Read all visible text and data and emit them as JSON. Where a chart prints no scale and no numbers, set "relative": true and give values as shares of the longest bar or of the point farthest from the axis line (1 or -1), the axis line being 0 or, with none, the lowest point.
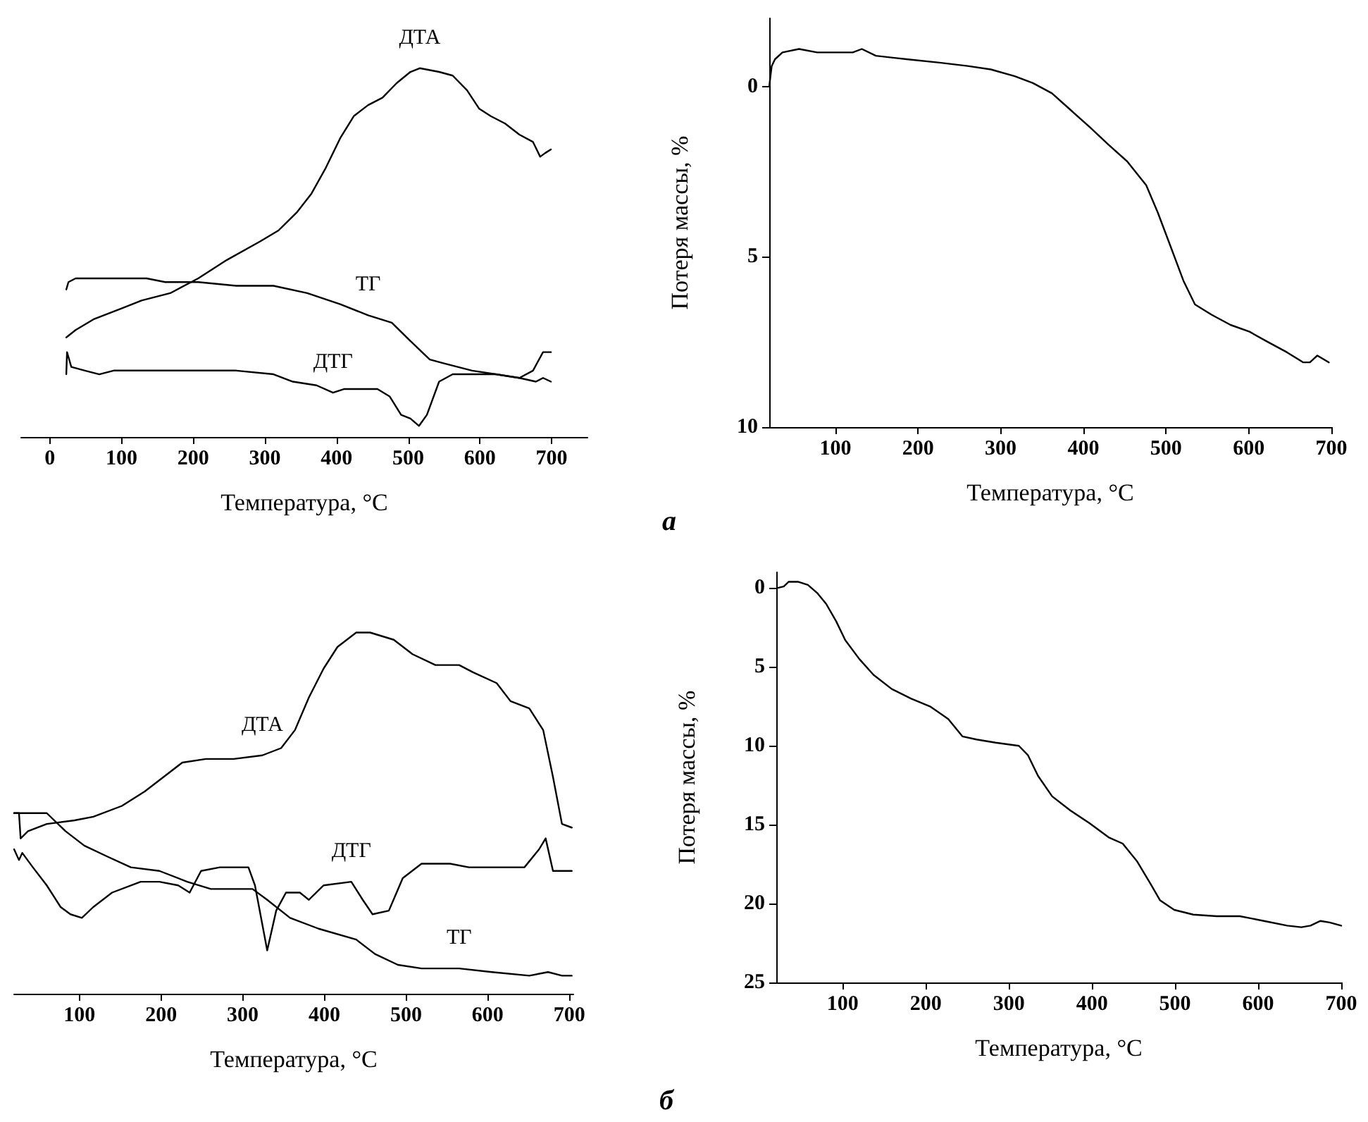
{
  "chart_data": [
    {
      "type": "line",
      "xlabel": "Температура, °C",
      "relative": true,
      "marker": "none",
      "grid": false,
      "legend": false,
      "xlim": [
        -40,
        750
      ],
      "xticks": [
        0,
        100,
        200,
        300,
        400,
        500,
        600,
        700
      ],
      "series": [
        {
          "name": "ДТА",
          "color": "#000000",
          "x": [
            23,
            36,
            62,
            102,
            128,
            168,
            207,
            247,
            293,
            319,
            345,
            365,
            385,
            405,
            424,
            444,
            464,
            484,
            503,
            516,
            543,
            562,
            582,
            599,
            615,
            635,
            655,
            674,
            684,
            691,
            699
          ],
          "values": [
            0.27,
            0.29,
            0.32,
            0.35,
            0.37,
            0.39,
            0.43,
            0.48,
            0.53,
            0.56,
            0.61,
            0.66,
            0.73,
            0.81,
            0.87,
            0.9,
            0.92,
            0.96,
            0.99,
            1.0,
            0.99,
            0.98,
            0.94,
            0.89,
            0.87,
            0.85,
            0.82,
            0.8,
            0.76,
            0.77,
            0.78
          ]
        },
        {
          "name": "ТГ",
          "color": "#000000",
          "x": [
            23,
            26,
            36,
            62,
            102,
            135,
            161,
            207,
            260,
            312,
            359,
            405,
            444,
            477,
            503,
            530,
            549,
            589,
            622,
            655,
            674,
            688,
            699
          ],
          "values": [
            0.4,
            0.42,
            0.43,
            0.43,
            0.43,
            0.43,
            0.42,
            0.42,
            0.41,
            0.41,
            0.39,
            0.36,
            0.33,
            0.31,
            0.26,
            0.21,
            0.2,
            0.18,
            0.17,
            0.16,
            0.18,
            0.23,
            0.23
          ]
        },
        {
          "name": "ДТГ",
          "color": "#000000",
          "x": [
            23,
            24,
            30,
            49,
            69,
            89,
            141,
            194,
            260,
            312,
            339,
            372,
            395,
            411,
            457,
            474,
            490,
            503,
            515,
            526,
            543,
            562,
            589,
            622,
            655,
            678,
            688,
            699
          ],
          "values": [
            0.17,
            0.23,
            0.19,
            0.18,
            0.17,
            0.18,
            0.18,
            0.18,
            0.18,
            0.17,
            0.15,
            0.14,
            0.12,
            0.13,
            0.13,
            0.11,
            0.06,
            0.05,
            0.03,
            0.06,
            0.15,
            0.17,
            0.17,
            0.17,
            0.16,
            0.15,
            0.16,
            0.15
          ]
        }
      ]
    },
    {
      "type": "line",
      "xlabel": "Температура, °C",
      "ylabel": "Потеря массы, %",
      "annotations": [
        "а"
      ],
      "marker": "none",
      "grid": false,
      "legend": false,
      "xlim": [
        20,
        700
      ],
      "xticks": [
        100,
        200,
        300,
        400,
        500,
        600,
        700
      ],
      "ylim": [
        10,
        -2
      ],
      "yticks": [
        0,
        5,
        10
      ],
      "series": [
        {
          "color": "#000000",
          "x": [
            20,
            23,
            27,
            36,
            56,
            78,
            101,
            121,
            132,
            149,
            186,
            226,
            260,
            288,
            317,
            339,
            362,
            385,
            408,
            430,
            453,
            476,
            490,
            504,
            521,
            535,
            555,
            578,
            601,
            623,
            646,
            666,
            674,
            683,
            697
          ],
          "values": [
            0,
            -0.6,
            -0.8,
            -1.0,
            -1.1,
            -1.0,
            -1.0,
            -1.0,
            -1.1,
            -0.9,
            -0.8,
            -0.7,
            -0.6,
            -0.5,
            -0.3,
            -0.1,
            0.2,
            0.7,
            1.2,
            1.7,
            2.2,
            2.9,
            3.7,
            4.6,
            5.7,
            6.4,
            6.7,
            7.0,
            7.2,
            7.5,
            7.8,
            8.1,
            8.1,
            7.9,
            8.1
          ]
        }
      ]
    },
    {
      "type": "line",
      "xlabel": "Температура, °C",
      "relative": true,
      "marker": "none",
      "grid": false,
      "legend": false,
      "xlim": [
        20,
        705
      ],
      "xticks": [
        100,
        200,
        300,
        400,
        500,
        600,
        700
      ],
      "series": [
        {
          "name": "ДТА",
          "color": "#000000",
          "x": [
            20,
            26,
            28,
            37,
            60,
            94,
            117,
            152,
            180,
            203,
            226,
            255,
            289,
            324,
            347,
            364,
            381,
            399,
            416,
            439,
            456,
            485,
            508,
            536,
            565,
            582,
            611,
            628,
            651,
            668,
            680,
            691,
            703
          ],
          "values": [
            0.5,
            0.5,
            0.43,
            0.45,
            0.47,
            0.48,
            0.49,
            0.52,
            0.56,
            0.6,
            0.64,
            0.65,
            0.65,
            0.66,
            0.68,
            0.73,
            0.82,
            0.9,
            0.96,
            1.0,
            1.0,
            0.98,
            0.94,
            0.91,
            0.91,
            0.89,
            0.86,
            0.81,
            0.79,
            0.73,
            0.6,
            0.47,
            0.46
          ]
        },
        {
          "name": "ТГ",
          "color": "#000000",
          "x": [
            20,
            37,
            60,
            83,
            106,
            134,
            163,
            198,
            232,
            261,
            312,
            330,
            358,
            393,
            439,
            462,
            490,
            519,
            565,
            605,
            651,
            674,
            691,
            703
          ],
          "values": [
            0.5,
            0.5,
            0.5,
            0.45,
            0.41,
            0.38,
            0.35,
            0.34,
            0.31,
            0.29,
            0.29,
            0.26,
            0.21,
            0.18,
            0.15,
            0.11,
            0.08,
            0.07,
            0.07,
            0.06,
            0.05,
            0.06,
            0.05,
            0.05
          ]
        },
        {
          "name": "ДТГ",
          "color": "#000000",
          "x": [
            20,
            26,
            30,
            43,
            60,
            77,
            89,
            103,
            117,
            140,
            175,
            198,
            221,
            235,
            249,
            272,
            307,
            315,
            330,
            341,
            353,
            370,
            381,
            399,
            433,
            447,
            459,
            479,
            496,
            519,
            554,
            577,
            611,
            645,
            663,
            671,
            680,
            691,
            703
          ],
          "values": [
            0.4,
            0.37,
            0.39,
            0.35,
            0.3,
            0.24,
            0.22,
            0.21,
            0.24,
            0.28,
            0.31,
            0.31,
            0.3,
            0.28,
            0.34,
            0.35,
            0.35,
            0.3,
            0.12,
            0.23,
            0.28,
            0.28,
            0.26,
            0.3,
            0.31,
            0.26,
            0.22,
            0.23,
            0.32,
            0.36,
            0.36,
            0.35,
            0.35,
            0.35,
            0.4,
            0.43,
            0.34,
            0.34,
            0.34
          ]
        }
      ]
    },
    {
      "type": "line",
      "xlabel": "Температура, °C",
      "ylabel": "Потеря массы, %",
      "annotations": [
        "б"
      ],
      "marker": "none",
      "grid": false,
      "legend": false,
      "xlim": [
        20,
        700
      ],
      "xticks": [
        100,
        200,
        300,
        400,
        500,
        600,
        700
      ],
      "ylim": [
        25,
        -1
      ],
      "yticks": [
        0,
        5,
        10,
        15,
        20,
        25
      ],
      "series": [
        {
          "color": "#000000",
          "x": [
            21,
            29,
            35,
            46,
            58,
            69,
            80,
            92,
            103,
            120,
            137,
            159,
            182,
            205,
            227,
            244,
            261,
            284,
            312,
            323,
            335,
            352,
            374,
            397,
            420,
            437,
            454,
            471,
            482,
            499,
            522,
            550,
            578,
            607,
            635,
            652,
            663,
            675,
            686,
            700
          ],
          "values": [
            0,
            -0.1,
            -0.4,
            -0.4,
            -0.2,
            0.3,
            1.0,
            2.1,
            3.3,
            4.5,
            5.5,
            6.4,
            7.0,
            7.5,
            8.3,
            9.4,
            9.6,
            9.8,
            10.0,
            10.6,
            11.9,
            13.2,
            14.1,
            14.9,
            15.8,
            16.2,
            17.3,
            18.8,
            19.8,
            20.4,
            20.7,
            20.8,
            20.8,
            21.1,
            21.4,
            21.5,
            21.4,
            21.1,
            21.2,
            21.4
          ]
        }
      ]
    }
  ]
}
